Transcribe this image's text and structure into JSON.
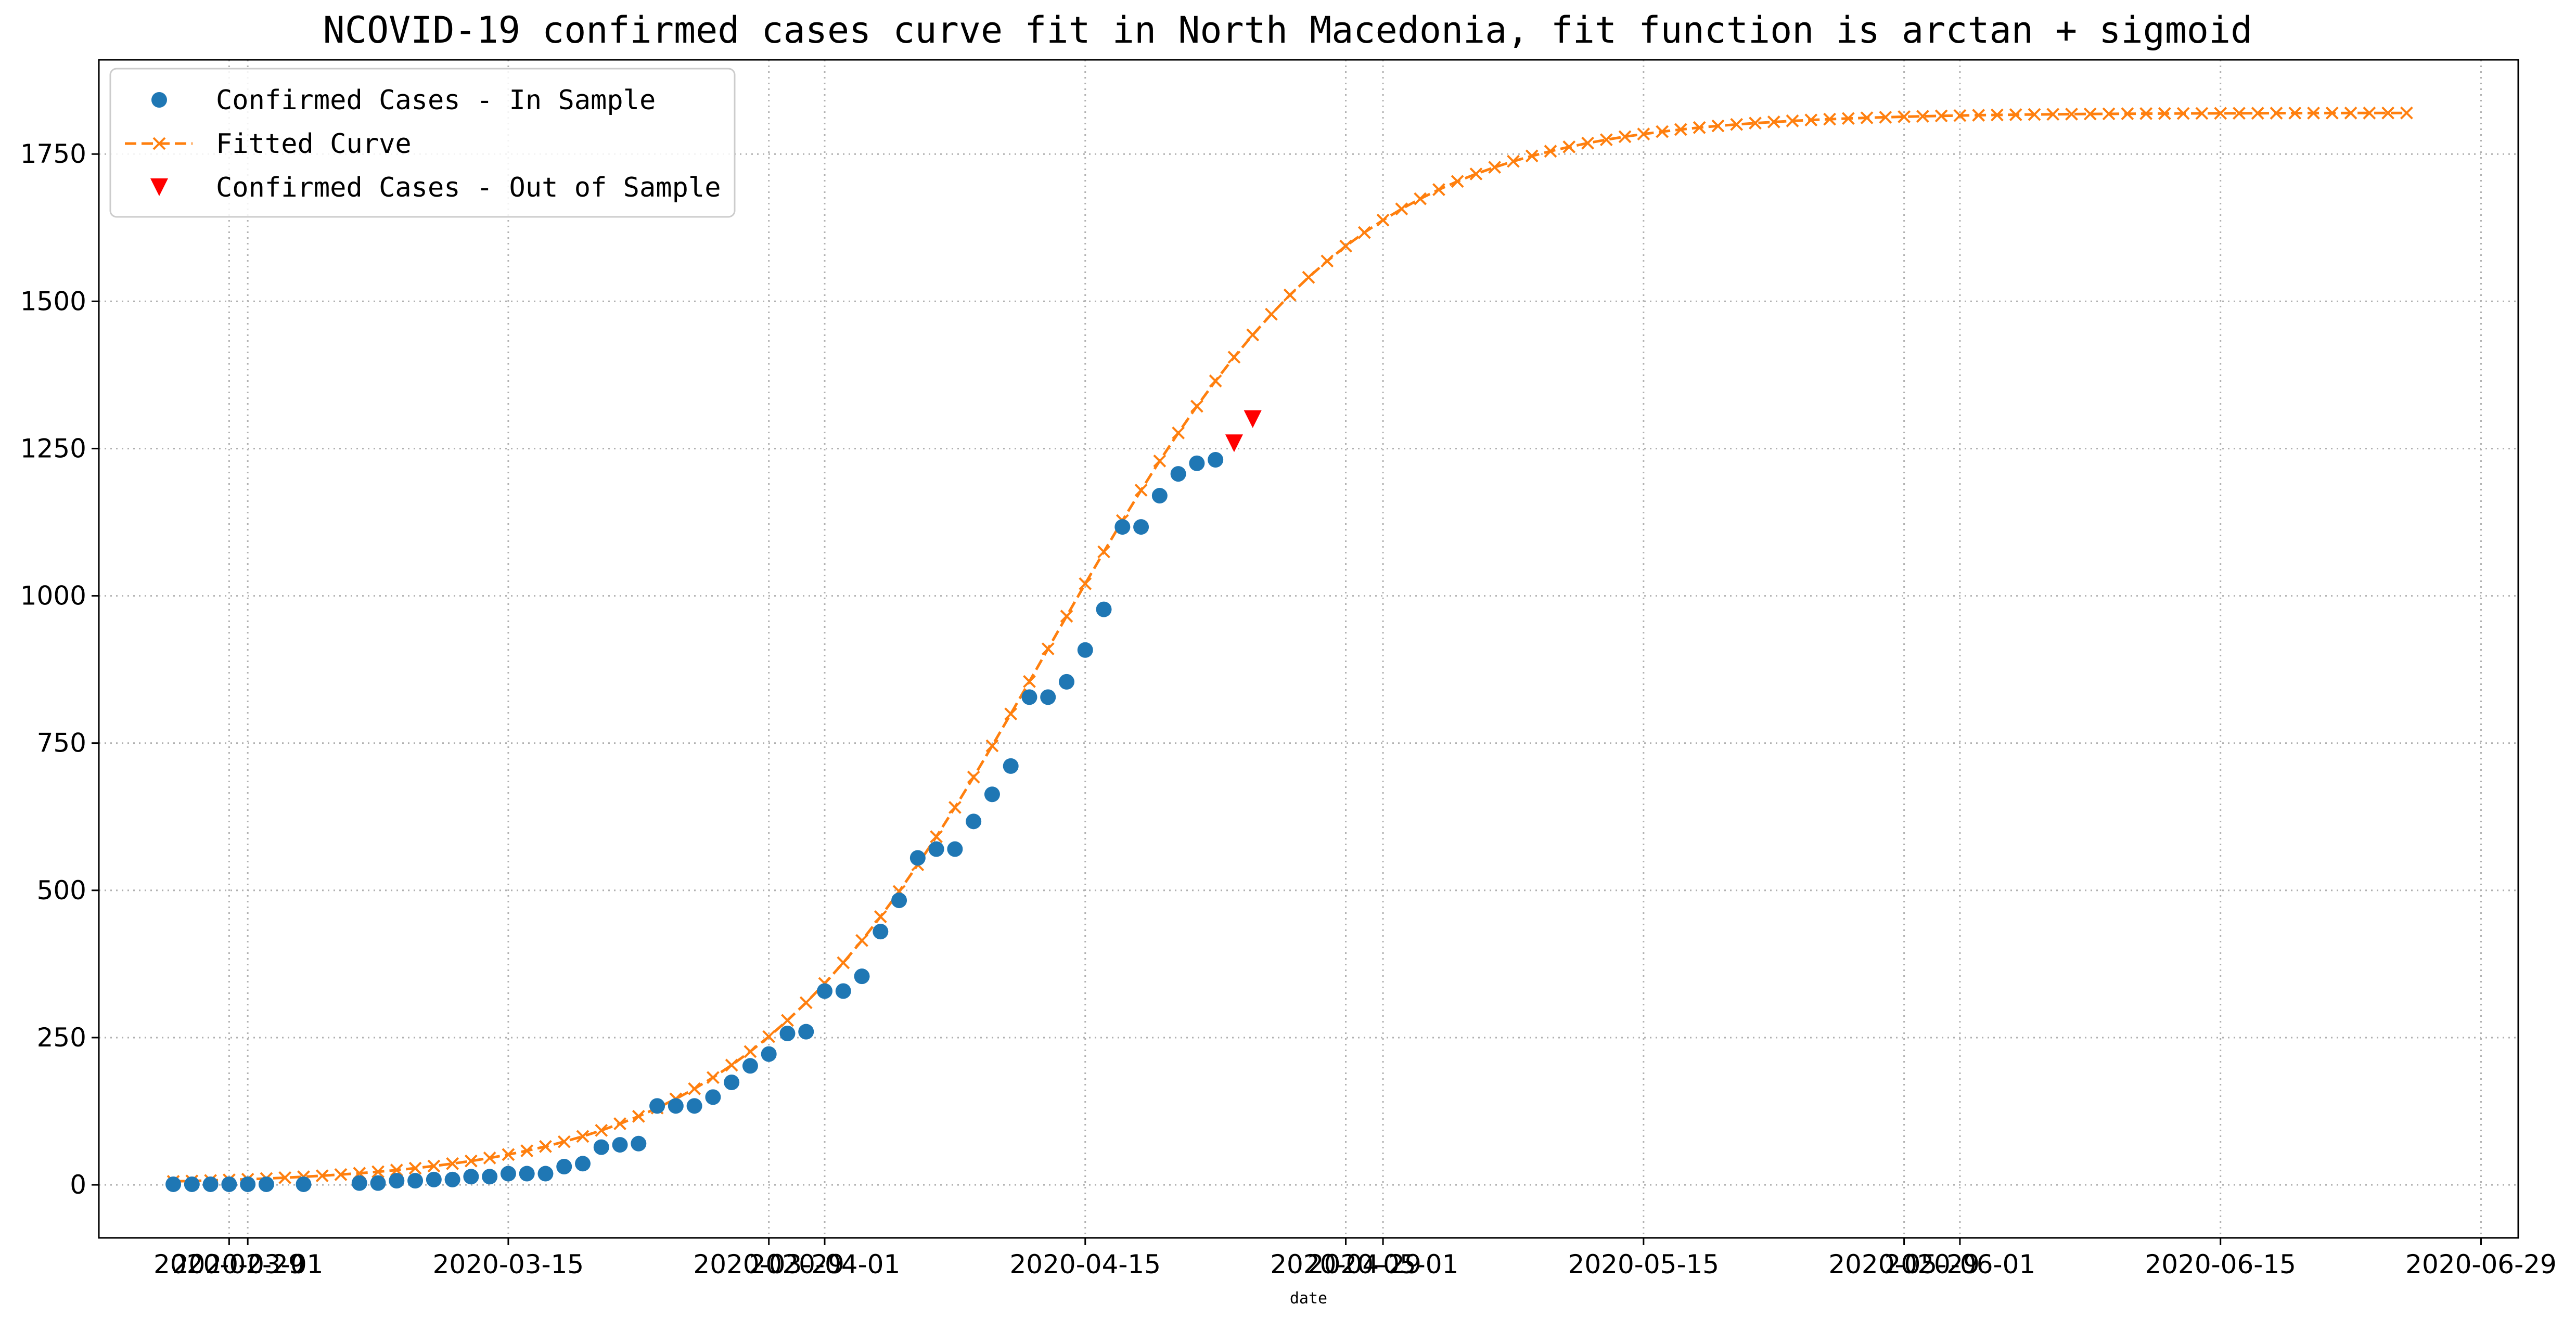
{
  "chart_data": {
    "type": "line",
    "title": "NCOVID-19 confirmed cases curve fit in North Macedonia, fit function is arctan + sigmoid",
    "xlabel": "date",
    "ylabel": "",
    "x_ticks": [
      "2020-02-29",
      "2020-03-01",
      "2020-03-15",
      "2020-03-29",
      "2020-04-01",
      "2020-04-15",
      "2020-04-29",
      "2020-05-01",
      "2020-05-15",
      "2020-05-29",
      "2020-06-01",
      "2020-06-15",
      "2020-06-29"
    ],
    "y_ticks": [
      0,
      250,
      500,
      750,
      1000,
      1250,
      1500,
      1750
    ],
    "xlim": [
      "2020-02-22",
      "2020-07-01"
    ],
    "ylim": [
      -90,
      1910
    ],
    "grid": true,
    "legend_position": "top-left",
    "colors": {
      "in_sample": "#1f77b4",
      "fitted": "#ff7f0e",
      "out_of_sample": "#ff0000",
      "grid": "#b0b0b0",
      "axes": "#000000"
    },
    "series": [
      {
        "name": "Confirmed Cases - In Sample",
        "style": "marker-circle",
        "points": [
          [
            "2020-02-26",
            1
          ],
          [
            "2020-02-27",
            1
          ],
          [
            "2020-02-28",
            1
          ],
          [
            "2020-02-29",
            1
          ],
          [
            "2020-03-01",
            1
          ],
          [
            "2020-03-02",
            1
          ],
          [
            "2020-03-04",
            1
          ],
          [
            "2020-03-07",
            3
          ],
          [
            "2020-03-08",
            3
          ],
          [
            "2020-03-09",
            7
          ],
          [
            "2020-03-10",
            7
          ],
          [
            "2020-03-11",
            9
          ],
          [
            "2020-03-12",
            9
          ],
          [
            "2020-03-13",
            14
          ],
          [
            "2020-03-14",
            14
          ],
          [
            "2020-03-15",
            19
          ],
          [
            "2020-03-16",
            19
          ],
          [
            "2020-03-17",
            19
          ],
          [
            "2020-03-18",
            31
          ],
          [
            "2020-03-19",
            36
          ],
          [
            "2020-03-20",
            64
          ],
          [
            "2020-03-21",
            68
          ],
          [
            "2020-03-22",
            70
          ],
          [
            "2020-03-23",
            134
          ],
          [
            "2020-03-24",
            134
          ],
          [
            "2020-03-25",
            134
          ],
          [
            "2020-03-26",
            149
          ],
          [
            "2020-03-27",
            174
          ],
          [
            "2020-03-28",
            202
          ],
          [
            "2020-03-29",
            222
          ],
          [
            "2020-03-30",
            257
          ],
          [
            "2020-03-31",
            260
          ],
          [
            "2020-04-01",
            329
          ],
          [
            "2020-04-02",
            329
          ],
          [
            "2020-04-03",
            354
          ],
          [
            "2020-04-04",
            430
          ],
          [
            "2020-04-05",
            483
          ],
          [
            "2020-04-06",
            555
          ],
          [
            "2020-04-07",
            570
          ],
          [
            "2020-04-08",
            570
          ],
          [
            "2020-04-09",
            617
          ],
          [
            "2020-04-10",
            663
          ],
          [
            "2020-04-11",
            711
          ],
          [
            "2020-04-12",
            828
          ],
          [
            "2020-04-13",
            828
          ],
          [
            "2020-04-14",
            854
          ],
          [
            "2020-04-15",
            908
          ],
          [
            "2020-04-16",
            977
          ],
          [
            "2020-04-17",
            1117
          ],
          [
            "2020-04-18",
            1117
          ],
          [
            "2020-04-19",
            1170
          ],
          [
            "2020-04-20",
            1207
          ],
          [
            "2020-04-21",
            1225
          ],
          [
            "2020-04-22",
            1231
          ]
        ]
      },
      {
        "name": "Fitted Curve",
        "style": "dashed-x",
        "fit": {
          "L": 1820,
          "x0": "2020-04-13",
          "k": 0.122
        },
        "start": "2020-02-26",
        "end": "2020-06-25"
      },
      {
        "name": "Confirmed Cases - Out of Sample",
        "style": "marker-triangle",
        "points": [
          [
            "2020-04-23",
            1259
          ],
          [
            "2020-04-24",
            1300
          ]
        ]
      }
    ]
  }
}
